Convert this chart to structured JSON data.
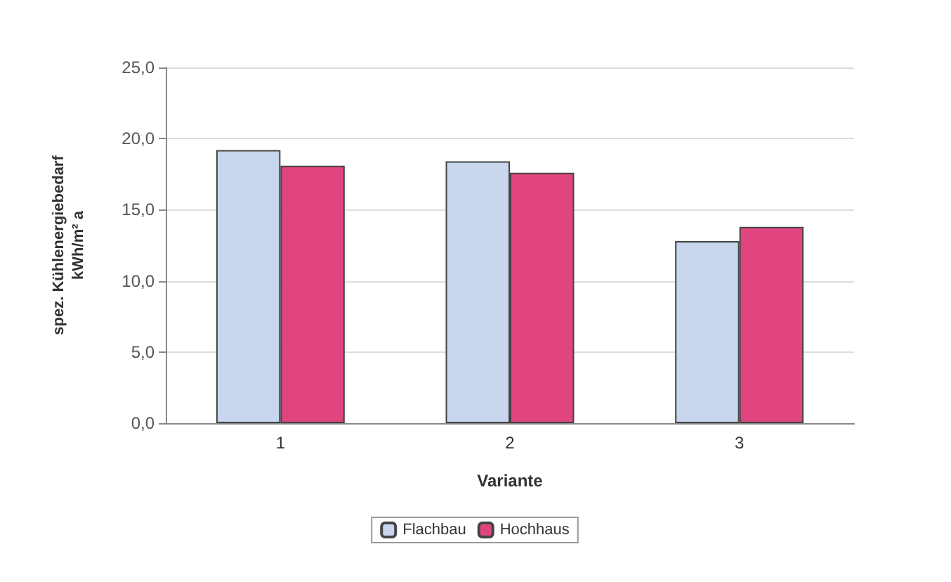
{
  "chart_data": {
    "type": "bar",
    "xlabel": "Variante",
    "ylabel": "spez. Kühlenergiebedarf\nkWh/m² a",
    "categories": [
      "1",
      "2",
      "3"
    ],
    "series": [
      {
        "name": "Flachbau",
        "color": "#c8d6ee",
        "values": [
          19.2,
          18.4,
          12.8
        ]
      },
      {
        "name": "Hochhaus",
        "color": "#e0457f",
        "values": [
          18.1,
          17.6,
          13.8
        ]
      }
    ],
    "ylim": [
      0,
      25
    ],
    "yticks": [
      {
        "value": 0,
        "label": "0,0"
      },
      {
        "value": 5,
        "label": "5,0"
      },
      {
        "value": 10,
        "label": "10,0"
      },
      {
        "value": 15,
        "label": "15,0"
      },
      {
        "value": 20,
        "label": "20,0"
      },
      {
        "value": 25,
        "label": "25,0"
      }
    ],
    "grid": "y",
    "legend": "bottom"
  }
}
